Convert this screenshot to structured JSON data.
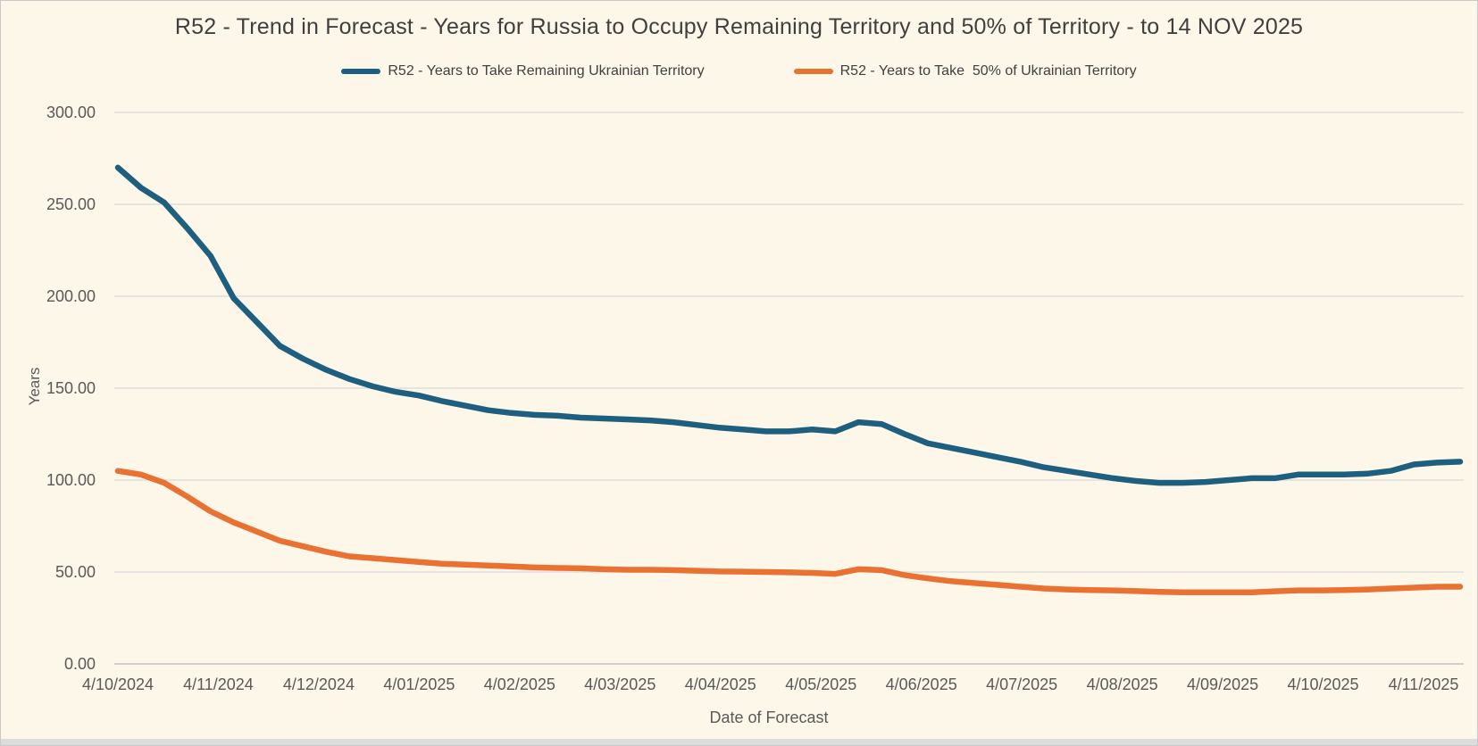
{
  "colors": {
    "background": "#FDF7E9",
    "gridline": "#D9D9D9",
    "axis_line": "#C0C0C0",
    "title_text": "#3F3F3F",
    "tick_text": "#595959",
    "series_remaining": "#1E5F80",
    "series_50pct": "#E97132",
    "frame": "#C9C9C9",
    "bottom_bar": "#DCDCDC"
  },
  "chart_data": {
    "type": "line",
    "title": "R52 - Trend in Forecast - Years for Russia to Occupy Remaining Territory and 50% of Territory - to 14 NOV 2025",
    "xlabel": "Date of Forecast",
    "ylabel": "Years",
    "ylim": [
      0,
      300
    ],
    "y_tick_step": 50,
    "y_ticks": [
      "0.00",
      "50.00",
      "100.00",
      "150.00",
      "200.00",
      "250.00",
      "300.00"
    ],
    "x_tick_labels": [
      "4/10/2024",
      "4/11/2024",
      "4/12/2024",
      "4/01/2025",
      "4/02/2025",
      "4/03/2025",
      "4/04/2025",
      "4/05/2025",
      "4/06/2025",
      "4/07/2025",
      "4/08/2025",
      "4/09/2025",
      "4/10/2025",
      "4/11/2025"
    ],
    "grid": true,
    "legend_position": "top",
    "series": [
      {
        "name": "R52 - Years to Take Remaining Ukrainian Territory",
        "color": "#1E5F80",
        "values": [
          270,
          259,
          251,
          237,
          222,
          199,
          186,
          173,
          166,
          160,
          155,
          151,
          148,
          146,
          143,
          140.5,
          138,
          136.5,
          135.5,
          135,
          134,
          133.5,
          133,
          132.5,
          131.5,
          130,
          128.5,
          127.5,
          126.5,
          126.5,
          127.5,
          126.5,
          131.5,
          130.5,
          125,
          120,
          117.5,
          115,
          112.5,
          110,
          107,
          105,
          103,
          101,
          99.5,
          98.5,
          98.5,
          99,
          100,
          101,
          101,
          103,
          103,
          103,
          103.5,
          105,
          108.5,
          109.5,
          110
        ]
      },
      {
        "name": "R52 - Years to Take  50% of Ukrainian Territory",
        "color": "#E97132",
        "values": [
          105,
          103,
          98.5,
          91,
          83,
          77,
          72,
          67,
          64,
          61,
          58.5,
          57.5,
          56.5,
          55.5,
          54.5,
          54,
          53.5,
          53,
          52.5,
          52.2,
          52,
          51.5,
          51.2,
          51.2,
          51,
          50.7,
          50.3,
          50.2,
          50,
          49.8,
          49.5,
          49,
          51.5,
          51,
          48.3,
          46.5,
          45,
          44,
          43,
          42,
          41,
          40.5,
          40.2,
          40,
          39.6,
          39.2,
          39,
          39,
          39,
          39,
          39.5,
          40,
          40,
          40.2,
          40.5,
          41,
          41.5,
          42,
          42
        ]
      }
    ]
  }
}
